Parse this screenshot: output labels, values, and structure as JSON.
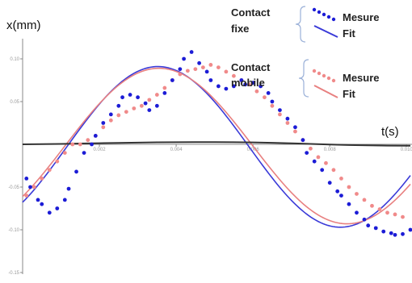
{
  "chart_data": {
    "type": "scatter",
    "xlabel": "t(s)",
    "ylabel": "x(mm)",
    "xlim": [
      0.0,
      0.0101
    ],
    "ylim": [
      -0.155,
      0.123
    ],
    "x_ticks": [
      0.002,
      0.004,
      0.006,
      0.008,
      0.01
    ],
    "x_tick_labels": [
      "0.002",
      "0.004",
      "0.006",
      "0.008",
      "0.010"
    ],
    "y_ticks": [
      0.1,
      0.05,
      -0.05,
      -0.1,
      -0.15
    ],
    "y_tick_labels": [
      "0.10",
      "0.05",
      "-0.05",
      "-0.10",
      "-0.15"
    ],
    "grid": false,
    "legend": {
      "placement": "top-right",
      "groups": [
        {
          "title_line1": "Contact",
          "title_line2": "fixe",
          "entries": [
            {
              "label": "Mesure",
              "style": "dots",
              "color": "#1c1cd6"
            },
            {
              "label": "Fit",
              "style": "line",
              "color": "#3a3ad8"
            }
          ]
        },
        {
          "title_line1": "Contact",
          "title_line2": "mobile",
          "entries": [
            {
              "label": "Mesure",
              "style": "dots",
              "color": "#f08a8a"
            },
            {
              "label": "Fit",
              "style": "line",
              "color": "#e88080"
            }
          ]
        }
      ]
    },
    "series": [
      {
        "kind": "scatter",
        "color": "#1c1cd6",
        "x": [
          0.0001,
          0.0002,
          0.0004,
          0.0005,
          0.0007,
          0.0009,
          0.0011,
          0.0012,
          0.0014,
          0.0016,
          0.0018,
          0.0019,
          0.0021,
          0.0023,
          0.0025,
          0.0026,
          0.0028,
          0.003,
          0.0032,
          0.0033,
          0.0035,
          0.0037,
          0.0039,
          0.0041,
          0.0042,
          0.0044,
          0.0046,
          0.0048,
          0.0049,
          0.0051,
          0.0053,
          0.0055,
          0.0057,
          0.0058,
          0.006,
          0.0062,
          0.0064,
          0.0065,
          0.0067,
          0.0069,
          0.0071,
          0.0073,
          0.0074,
          0.0076,
          0.0078,
          0.008,
          0.0082,
          0.0083,
          0.0085,
          0.0087,
          0.0089,
          0.009,
          0.0092,
          0.0094,
          0.0096,
          0.0097,
          0.0099,
          0.0101
        ],
        "y": [
          -0.04,
          -0.05,
          -0.065,
          -0.07,
          -0.08,
          -0.075,
          -0.065,
          -0.052,
          -0.032,
          -0.01,
          0.0,
          0.01,
          0.025,
          0.035,
          0.045,
          0.055,
          0.058,
          0.055,
          0.048,
          0.04,
          0.045,
          0.06,
          0.075,
          0.088,
          0.1,
          0.108,
          0.095,
          0.085,
          0.075,
          0.068,
          0.065,
          0.068,
          0.075,
          0.07,
          0.072,
          0.068,
          0.06,
          0.05,
          0.04,
          0.03,
          0.02,
          0.005,
          -0.01,
          -0.02,
          -0.03,
          -0.045,
          -0.055,
          -0.06,
          -0.07,
          -0.08,
          -0.088,
          -0.095,
          -0.098,
          -0.102,
          -0.104,
          -0.106,
          -0.105,
          -0.1
        ]
      },
      {
        "kind": "scatter",
        "color": "#f08a8a",
        "x": [
          0.0001,
          0.0003,
          0.0005,
          0.0007,
          0.0009,
          0.0011,
          0.0013,
          0.0015,
          0.0017,
          0.0019,
          0.0021,
          0.0023,
          0.0025,
          0.0027,
          0.0029,
          0.0031,
          0.0033,
          0.0035,
          0.0037,
          0.0039,
          0.0041,
          0.0043,
          0.0045,
          0.0047,
          0.0049,
          0.0051,
          0.0053,
          0.0055,
          0.0057,
          0.0059,
          0.0061,
          0.0063,
          0.0065,
          0.0067,
          0.0069,
          0.0071,
          0.0073,
          0.0075,
          0.0077,
          0.0079,
          0.0081,
          0.0083,
          0.0085,
          0.0087,
          0.0089,
          0.0091,
          0.0093,
          0.0095,
          0.0097,
          0.0099
        ],
        "y": [
          -0.06,
          -0.05,
          -0.04,
          -0.03,
          -0.02,
          -0.01,
          0.0,
          0.0,
          0.005,
          0.01,
          0.02,
          0.028,
          0.034,
          0.038,
          0.042,
          0.045,
          0.052,
          0.058,
          0.066,
          0.075,
          0.082,
          0.086,
          0.088,
          0.09,
          0.093,
          0.09,
          0.085,
          0.08,
          0.075,
          0.07,
          0.062,
          0.055,
          0.045,
          0.035,
          0.025,
          0.015,
          0.005,
          -0.005,
          -0.015,
          -0.022,
          -0.03,
          -0.04,
          -0.05,
          -0.058,
          -0.065,
          -0.072,
          -0.076,
          -0.08,
          -0.082,
          -0.085
        ]
      },
      {
        "kind": "fit",
        "color": "#3a3ad8",
        "amplitude": 0.094,
        "period": 0.0095,
        "phase_zero": 0.00115,
        "offset": -0.003
      },
      {
        "kind": "fit",
        "color": "#e88080",
        "amplitude": 0.091,
        "period": 0.0098,
        "phase_zero": 0.0011,
        "offset": -0.002
      },
      {
        "kind": "line",
        "color": "#333333",
        "x": [
          0.0,
          0.0005,
          0.001,
          0.0015,
          0.002,
          0.0025,
          0.003,
          0.0035,
          0.004,
          0.0045,
          0.005,
          0.0055,
          0.006,
          0.0065,
          0.007,
          0.0075,
          0.008,
          0.0085,
          0.009,
          0.0095,
          0.0101
        ],
        "y": [
          0.0,
          0.0002,
          0.0005,
          0.0009,
          0.0013,
          0.0017,
          0.002,
          0.0023,
          0.0025,
          0.0026,
          0.0026,
          0.0025,
          0.0022,
          0.0018,
          0.0012,
          0.0005,
          -0.0002,
          -0.0008,
          -0.0012,
          -0.0015,
          -0.0016
        ]
      }
    ]
  }
}
